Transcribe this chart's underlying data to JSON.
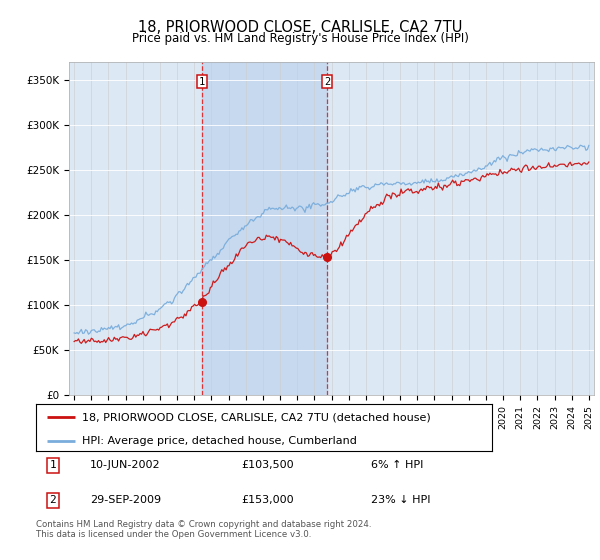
{
  "title": "18, PRIORWOOD CLOSE, CARLISLE, CA2 7TU",
  "subtitle": "Price paid vs. HM Land Registry's House Price Index (HPI)",
  "hpi_label": "HPI: Average price, detached house, Cumberland",
  "price_label": "18, PRIORWOOD CLOSE, CARLISLE, CA2 7TU (detached house)",
  "transaction1": {
    "date": "10-JUN-2002",
    "price": 103500,
    "hpi_diff": "6% ↑ HPI",
    "label": "1"
  },
  "transaction2": {
    "date": "29-SEP-2009",
    "price": 153000,
    "hpi_diff": "23% ↓ HPI",
    "label": "2"
  },
  "footer": "Contains HM Land Registry data © Crown copyright and database right 2024.\nThis data is licensed under the Open Government Licence v3.0.",
  "hpi_color": "#7aaddc",
  "price_color": "#cc1111",
  "bg_color": "#dce9f5",
  "shade_color": "#c5d8ee",
  "ylim": [
    0,
    370000
  ],
  "yticks": [
    0,
    50000,
    100000,
    150000,
    200000,
    250000,
    300000,
    350000
  ],
  "ytick_labels": [
    "£0",
    "£50K",
    "£100K",
    "£150K",
    "£200K",
    "£250K",
    "£300K",
    "£350K"
  ],
  "xstart_year": 1995,
  "xend_year": 2025,
  "t1_year": 2002.44,
  "t2_year": 2009.74,
  "t1_price": 103500,
  "t2_price": 153000
}
